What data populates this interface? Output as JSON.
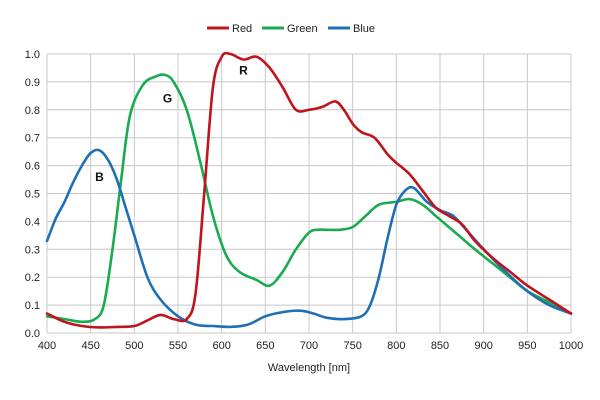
{
  "chart_data": {
    "type": "line",
    "title": "",
    "xlabel": "Wavelength [nm]",
    "ylabel": "",
    "xlim": [
      400,
      1000
    ],
    "ylim": [
      0,
      1.0
    ],
    "xticks": [
      400,
      450,
      500,
      550,
      600,
      650,
      700,
      750,
      800,
      850,
      900,
      950,
      1000
    ],
    "yticks": [
      "0.0",
      "0.1",
      "0.2",
      "0.3",
      "0.4",
      "0.5",
      "0.6",
      "0.7",
      "0.8",
      "0.9",
      "1.0"
    ],
    "grid": true,
    "legend_position": "top-center",
    "series": [
      {
        "name": "Red",
        "color": "#c0141c",
        "x": [
          400,
          420,
          440,
          460,
          480,
          500,
          515,
          530,
          545,
          560,
          570,
          580,
          590,
          600,
          610,
          625,
          640,
          655,
          670,
          685,
          700,
          715,
          730,
          740,
          750,
          760,
          775,
          790,
          800,
          815,
          830,
          845,
          860,
          875,
          890,
          910,
          930,
          950,
          975,
          1000
        ],
        "y": [
          0.07,
          0.04,
          0.025,
          0.02,
          0.022,
          0.025,
          0.045,
          0.065,
          0.05,
          0.05,
          0.14,
          0.5,
          0.88,
          0.99,
          1.0,
          0.98,
          0.99,
          0.95,
          0.88,
          0.8,
          0.8,
          0.81,
          0.83,
          0.8,
          0.75,
          0.72,
          0.7,
          0.64,
          0.61,
          0.57,
          0.51,
          0.45,
          0.42,
          0.39,
          0.33,
          0.27,
          0.22,
          0.17,
          0.12,
          0.07
        ]
      },
      {
        "name": "Green",
        "color": "#1aaa50",
        "x": [
          400,
          420,
          440,
          455,
          465,
          475,
          485,
          495,
          510,
          525,
          535,
          545,
          560,
          575,
          590,
          605,
          620,
          640,
          655,
          670,
          685,
          700,
          710,
          720,
          735,
          750,
          765,
          780,
          800,
          815,
          830,
          845,
          860,
          875,
          890,
          910,
          930,
          950,
          975,
          1000
        ],
        "y": [
          0.06,
          0.05,
          0.04,
          0.05,
          0.1,
          0.3,
          0.55,
          0.78,
          0.89,
          0.92,
          0.925,
          0.9,
          0.8,
          0.62,
          0.42,
          0.28,
          0.22,
          0.19,
          0.17,
          0.22,
          0.3,
          0.36,
          0.37,
          0.37,
          0.37,
          0.38,
          0.42,
          0.46,
          0.47,
          0.48,
          0.46,
          0.42,
          0.38,
          0.34,
          0.3,
          0.25,
          0.2,
          0.15,
          0.11,
          0.07
        ]
      },
      {
        "name": "Blue",
        "color": "#1f6fb5",
        "x": [
          400,
          410,
          420,
          430,
          440,
          450,
          460,
          470,
          480,
          490,
          500,
          515,
          530,
          550,
          570,
          590,
          610,
          630,
          650,
          670,
          690,
          705,
          720,
          740,
          760,
          770,
          780,
          790,
          800,
          810,
          820,
          835,
          850,
          865,
          880,
          900,
          925,
          950,
          975,
          1000
        ],
        "y": [
          0.33,
          0.41,
          0.47,
          0.54,
          0.6,
          0.645,
          0.655,
          0.62,
          0.55,
          0.45,
          0.35,
          0.2,
          0.12,
          0.06,
          0.03,
          0.025,
          0.022,
          0.03,
          0.06,
          0.075,
          0.08,
          0.07,
          0.055,
          0.05,
          0.06,
          0.1,
          0.2,
          0.34,
          0.46,
          0.51,
          0.52,
          0.47,
          0.44,
          0.42,
          0.37,
          0.3,
          0.22,
          0.15,
          0.1,
          0.07
        ]
      }
    ],
    "annotations": [
      {
        "text": "R",
        "x": 625,
        "y": 0.94
      },
      {
        "text": "G",
        "x": 538,
        "y": 0.84
      },
      {
        "text": "B",
        "x": 460,
        "y": 0.56
      }
    ]
  }
}
